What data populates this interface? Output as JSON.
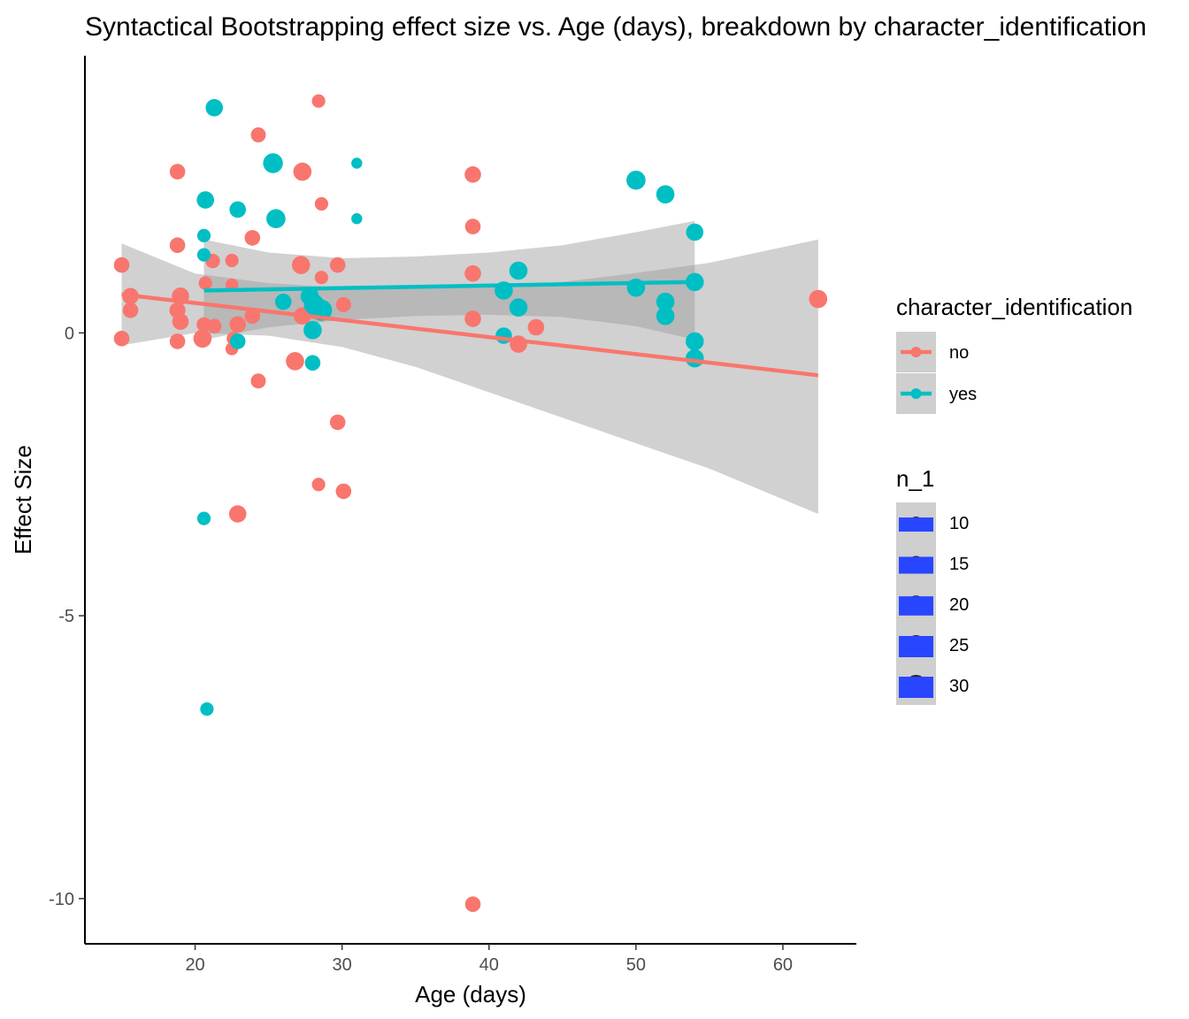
{
  "chart_data": {
    "type": "scatter",
    "title": "Syntactical Bootstrapping effect size vs. Age (days), breakdown by character_identification",
    "xlabel": "Age (days)",
    "ylabel": "Effect Size",
    "xlim": [
      12.5,
      65
    ],
    "ylim": [
      -10.8,
      4.9
    ],
    "x_ticks": [
      20,
      30,
      40,
      50,
      60
    ],
    "y_ticks": [
      0,
      -5,
      -10
    ],
    "grid": false,
    "colors": {
      "no": "#F8766D",
      "yes": "#00BFC4",
      "ribbon": "#999999",
      "size_key": "#2846FF"
    },
    "legend_color": {
      "title": "character_identification",
      "placement": "right",
      "entries": [
        {
          "label": "no",
          "color": "#F8766D"
        },
        {
          "label": "yes",
          "color": "#00BFC4"
        }
      ]
    },
    "legend_size": {
      "title": "n_1",
      "entries": [
        {
          "label": "10",
          "value": 10
        },
        {
          "label": "15",
          "value": 15
        },
        {
          "label": "20",
          "value": 20
        },
        {
          "label": "25",
          "value": 25
        },
        {
          "label": "30",
          "value": 30
        }
      ]
    },
    "series": [
      {
        "name": "no",
        "color": "#F8766D",
        "points": [
          {
            "x": 15.0,
            "y": 1.2,
            "n": 16
          },
          {
            "x": 15.0,
            "y": -0.1,
            "n": 16
          },
          {
            "x": 15.6,
            "y": 0.65,
            "n": 18
          },
          {
            "x": 15.6,
            "y": 0.4,
            "n": 16
          },
          {
            "x": 18.8,
            "y": 2.85,
            "n": 16
          },
          {
            "x": 18.8,
            "y": 1.55,
            "n": 16
          },
          {
            "x": 18.8,
            "y": 0.4,
            "n": 17
          },
          {
            "x": 18.8,
            "y": -0.15,
            "n": 16
          },
          {
            "x": 19.0,
            "y": 0.65,
            "n": 20
          },
          {
            "x": 19.0,
            "y": 0.2,
            "n": 18
          },
          {
            "x": 20.5,
            "y": -0.1,
            "n": 22
          },
          {
            "x": 20.6,
            "y": 0.15,
            "n": 14
          },
          {
            "x": 20.7,
            "y": 0.88,
            "n": 12
          },
          {
            "x": 21.2,
            "y": 1.27,
            "n": 14
          },
          {
            "x": 21.3,
            "y": 0.12,
            "n": 14
          },
          {
            "x": 22.5,
            "y": 1.28,
            "n": 12
          },
          {
            "x": 22.5,
            "y": 0.85,
            "n": 11
          },
          {
            "x": 22.5,
            "y": -0.28,
            "n": 11
          },
          {
            "x": 22.6,
            "y": -0.1,
            "n": 12
          },
          {
            "x": 22.9,
            "y": 0.15,
            "n": 18
          },
          {
            "x": 22.9,
            "y": -3.2,
            "n": 20
          },
          {
            "x": 23.9,
            "y": 1.68,
            "n": 16
          },
          {
            "x": 23.9,
            "y": 0.3,
            "n": 16
          },
          {
            "x": 24.3,
            "y": 3.5,
            "n": 15
          },
          {
            "x": 24.3,
            "y": -0.85,
            "n": 15
          },
          {
            "x": 26.8,
            "y": -0.5,
            "n": 22
          },
          {
            "x": 27.2,
            "y": 1.2,
            "n": 22
          },
          {
            "x": 27.3,
            "y": 2.85,
            "n": 22
          },
          {
            "x": 27.3,
            "y": 0.3,
            "n": 20
          },
          {
            "x": 28.4,
            "y": 4.1,
            "n": 12
          },
          {
            "x": 28.4,
            "y": -2.68,
            "n": 12
          },
          {
            "x": 28.6,
            "y": 2.28,
            "n": 12
          },
          {
            "x": 28.6,
            "y": 0.98,
            "n": 12
          },
          {
            "x": 29.7,
            "y": 1.2,
            "n": 16
          },
          {
            "x": 29.7,
            "y": -1.58,
            "n": 16
          },
          {
            "x": 30.1,
            "y": 0.5,
            "n": 15
          },
          {
            "x": 30.1,
            "y": -2.8,
            "n": 16
          },
          {
            "x": 38.9,
            "y": 1.05,
            "n": 18
          },
          {
            "x": 38.9,
            "y": 2.8,
            "n": 18
          },
          {
            "x": 38.9,
            "y": 1.88,
            "n": 16
          },
          {
            "x": 38.9,
            "y": 0.25,
            "n": 18
          },
          {
            "x": 38.9,
            "y": -10.1,
            "n": 16
          },
          {
            "x": 42.0,
            "y": -0.2,
            "n": 20
          },
          {
            "x": 43.2,
            "y": 0.1,
            "n": 18
          },
          {
            "x": 62.4,
            "y": 0.6,
            "n": 22
          }
        ],
        "trend": {
          "x": [
            15.0,
            62.4
          ],
          "y": [
            0.68,
            -0.75
          ]
        },
        "ribbon": {
          "x": [
            15.0,
            20.0,
            25.0,
            30.0,
            35.0,
            40.0,
            45.0,
            50.0,
            55.0,
            62.4
          ],
          "upper": [
            1.58,
            1.05,
            0.88,
            0.8,
            0.78,
            0.82,
            0.9,
            1.06,
            1.24,
            1.65
          ],
          "lower": [
            -0.22,
            0.0,
            -0.05,
            -0.25,
            -0.6,
            -1.05,
            -1.5,
            -1.95,
            -2.4,
            -3.2
          ]
        }
      },
      {
        "name": "yes",
        "color": "#00BFC4",
        "points": [
          {
            "x": 21.3,
            "y": 3.98,
            "n": 20
          },
          {
            "x": 20.7,
            "y": 2.35,
            "n": 20
          },
          {
            "x": 20.6,
            "y": 1.72,
            "n": 12
          },
          {
            "x": 20.6,
            "y": 1.38,
            "n": 12
          },
          {
            "x": 20.6,
            "y": -3.28,
            "n": 12
          },
          {
            "x": 20.8,
            "y": -6.65,
            "n": 12
          },
          {
            "x": 22.9,
            "y": 2.18,
            "n": 18
          },
          {
            "x": 22.9,
            "y": -0.15,
            "n": 16
          },
          {
            "x": 25.3,
            "y": 3.0,
            "n": 26
          },
          {
            "x": 25.5,
            "y": 2.02,
            "n": 24
          },
          {
            "x": 26.0,
            "y": 0.55,
            "n": 18
          },
          {
            "x": 27.8,
            "y": 0.65,
            "n": 22
          },
          {
            "x": 28.1,
            "y": 0.5,
            "n": 28
          },
          {
            "x": 28.6,
            "y": 0.4,
            "n": 30
          },
          {
            "x": 28.0,
            "y": 0.05,
            "n": 22
          },
          {
            "x": 28.0,
            "y": -0.53,
            "n": 16
          },
          {
            "x": 31.0,
            "y": 3.0,
            "n": 8
          },
          {
            "x": 31.0,
            "y": 2.02,
            "n": 8
          },
          {
            "x": 41.0,
            "y": 0.75,
            "n": 22
          },
          {
            "x": 42.0,
            "y": 1.1,
            "n": 22
          },
          {
            "x": 42.0,
            "y": 0.45,
            "n": 22
          },
          {
            "x": 41.0,
            "y": -0.05,
            "n": 18
          },
          {
            "x": 50.0,
            "y": 2.7,
            "n": 24
          },
          {
            "x": 50.0,
            "y": 0.8,
            "n": 22
          },
          {
            "x": 52.0,
            "y": 2.45,
            "n": 22
          },
          {
            "x": 52.0,
            "y": 0.55,
            "n": 22
          },
          {
            "x": 52.0,
            "y": 0.3,
            "n": 22
          },
          {
            "x": 54.0,
            "y": 1.78,
            "n": 20
          },
          {
            "x": 54.0,
            "y": 0.9,
            "n": 22
          },
          {
            "x": 54.0,
            "y": -0.15,
            "n": 22
          },
          {
            "x": 54.0,
            "y": -0.45,
            "n": 22
          }
        ],
        "trend": {
          "x": [
            20.6,
            54.0
          ],
          "y": [
            0.75,
            0.9
          ]
        },
        "ribbon": {
          "x": [
            20.6,
            25.0,
            30.0,
            35.0,
            40.0,
            45.0,
            50.0,
            54.0
          ],
          "upper": [
            1.65,
            1.42,
            1.32,
            1.35,
            1.42,
            1.55,
            1.78,
            1.98
          ],
          "lower": [
            -0.12,
            0.1,
            0.23,
            0.3,
            0.32,
            0.28,
            0.12,
            -0.12
          ]
        }
      }
    ]
  }
}
